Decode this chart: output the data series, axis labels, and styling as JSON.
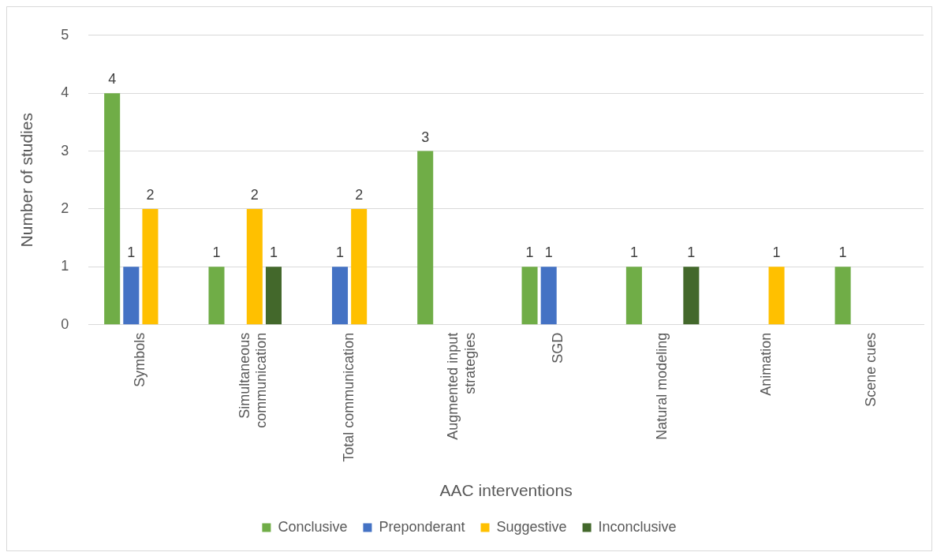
{
  "chart_data": {
    "type": "bar",
    "xlabel": "AAC interventions",
    "ylabel": "Number of studies",
    "categories": [
      "Symbols",
      "Simultaneous communication",
      "Total communication",
      "Augmented input strategies",
      "SGD",
      "Natural modeling",
      "Animation",
      "Scene cues"
    ],
    "series": [
      {
        "name": "Conclusive",
        "color": "#70ad47",
        "values": [
          4,
          1,
          null,
          3,
          1,
          1,
          null,
          1
        ]
      },
      {
        "name": "Preponderant",
        "color": "#4472c4",
        "values": [
          1,
          null,
          1,
          null,
          1,
          null,
          null,
          null
        ]
      },
      {
        "name": "Suggestive",
        "color": "#ffc000",
        "values": [
          2,
          2,
          2,
          null,
          null,
          null,
          1,
          null
        ]
      },
      {
        "name": "Inconclusive",
        "color": "#43682b",
        "values": [
          null,
          1,
          null,
          null,
          null,
          1,
          null,
          null
        ]
      }
    ],
    "ylim": [
      0,
      5
    ],
    "yticks": [
      0,
      1,
      2,
      3,
      4,
      5
    ],
    "grid": "y",
    "legend": "bottom",
    "data_labels": true
  }
}
